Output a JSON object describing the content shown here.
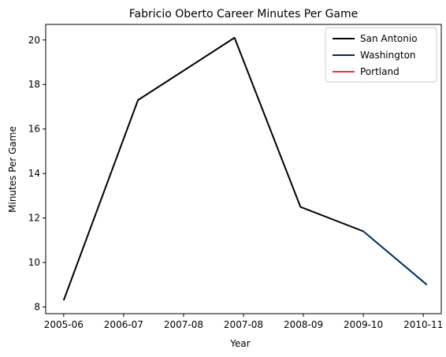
{
  "chart_data": {
    "type": "line",
    "title": "Fabricio Oberto Career Minutes Per Game",
    "xlabel": "Year",
    "ylabel": "Minutes Per Game",
    "ylim": [
      7.7,
      20.7
    ],
    "yticks": [
      8,
      10,
      12,
      14,
      16,
      18,
      20
    ],
    "xlim": [
      -0.3,
      6.3
    ],
    "xticks": [
      0,
      1,
      2,
      3,
      4,
      5,
      6
    ],
    "xtick_labels": [
      "2005-06",
      "2006-07",
      "2007-08",
      "2007-08",
      "2008-09",
      "2009-10",
      "2010-11"
    ],
    "grid": false,
    "legend_position": "top-right",
    "series": [
      {
        "name": "San Antonio",
        "color": "#000000",
        "points": [
          {
            "x": 0.0,
            "y": 8.3
          },
          {
            "x": 1.24,
            "y": 17.3
          },
          {
            "x": 2.85,
            "y": 20.1
          },
          {
            "x": 3.95,
            "y": 12.5
          },
          {
            "x": 5.0,
            "y": 11.4
          }
        ]
      },
      {
        "name": "Washington",
        "color": "#002b5c",
        "points": [
          {
            "x": 5.0,
            "y": 11.4
          },
          {
            "x": 6.06,
            "y": 9.0
          }
        ]
      },
      {
        "name": "Portland",
        "color": "#e03a3e",
        "points": []
      }
    ]
  }
}
